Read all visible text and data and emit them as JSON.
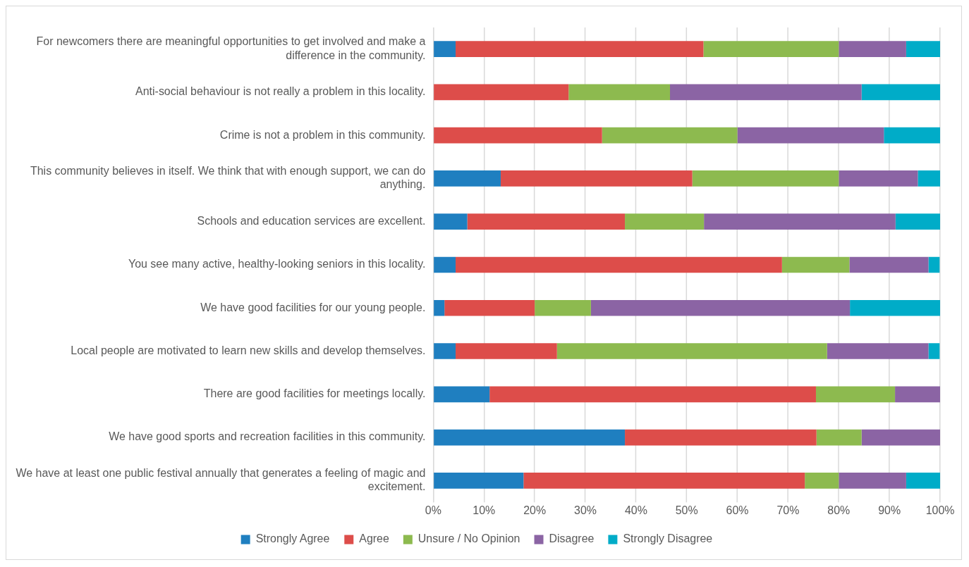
{
  "chart_data": {
    "type": "bar",
    "orientation": "horizontal",
    "stacked": true,
    "categories": [
      "For newcomers there are meaningful opportunities to get involved and make a difference in the community.",
      "Anti-social behaviour is not really a problem in this locality.",
      "Crime is not a problem in this community.",
      "This community believes in itself. We think that with enough support, we can do anything.",
      "Schools and education services are excellent.",
      "You see many active, healthy-looking seniors in this locality.",
      "We have good facilities for our young people.",
      "Local people are motivated to learn new skills and develop themselves.",
      "There are good facilities for meetings locally.",
      "We have good sports and recreation facilities in this community.",
      "We have at least one public festival annually that generates a feeling of magic and excitement."
    ],
    "series": [
      {
        "name": "Strongly Agree",
        "color": "#1f7fc0",
        "values": [
          4.4,
          0,
          0,
          13.3,
          6.7,
          4.4,
          2.2,
          4.4,
          11.1,
          37.8,
          17.8
        ]
      },
      {
        "name": "Agree",
        "color": "#dd4d4a",
        "values": [
          48.9,
          26.7,
          33.3,
          37.8,
          31.1,
          64.4,
          17.8,
          20,
          64.4,
          37.8,
          55.5
        ]
      },
      {
        "name": "Unsure / No Opinion",
        "color": "#8dba4f",
        "values": [
          26.7,
          20,
          26.7,
          28.9,
          15.6,
          13.3,
          11.1,
          53.3,
          15.6,
          8.9,
          6.7
        ]
      },
      {
        "name": "Disagree",
        "color": "#8b64a4",
        "values": [
          13.3,
          37.8,
          28.9,
          15.6,
          37.8,
          15.6,
          51.1,
          20,
          8.9,
          15.5,
          13.3
        ]
      },
      {
        "name": "Strongly Disagree",
        "color": "#00acc8",
        "values": [
          6.7,
          15.5,
          11.1,
          4.4,
          8.8,
          2.2,
          17.8,
          2.2,
          0,
          0,
          6.7
        ]
      }
    ],
    "xlim": [
      0,
      100
    ],
    "xticks": [
      {
        "value": 0,
        "label": "0%"
      },
      {
        "value": 10,
        "label": "10%"
      },
      {
        "value": 20,
        "label": "20%"
      },
      {
        "value": 30,
        "label": "30%"
      },
      {
        "value": 40,
        "label": "40%"
      },
      {
        "value": 50,
        "label": "50%"
      },
      {
        "value": 60,
        "label": "60%"
      },
      {
        "value": 70,
        "label": "70%"
      },
      {
        "value": 80,
        "label": "80%"
      },
      {
        "value": 90,
        "label": "90%"
      },
      {
        "value": 100,
        "label": "100%"
      }
    ],
    "grid": "x",
    "legend": "bottom"
  }
}
